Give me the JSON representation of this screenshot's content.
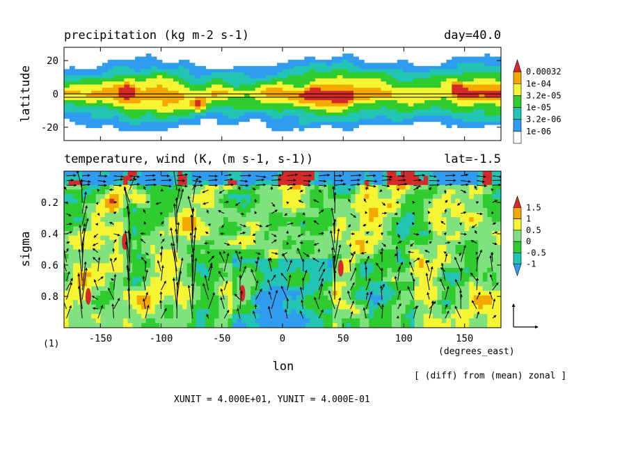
{
  "chart_data": [
    {
      "type": "heatmap",
      "title": "precipitation (kg m-2 s-1)",
      "title_right": "day=40.0",
      "ylabel": "latitude",
      "xlim": [
        -180,
        180
      ],
      "ylim": [
        -28,
        28
      ],
      "yticks": [
        20,
        0,
        -20
      ],
      "reference_line_y": [
        0,
        -2
      ],
      "colorbar": {
        "levels": [
          "0.00032",
          "1e-04",
          "3.2e-05",
          "1e-05",
          "3.2e-06",
          "1e-06"
        ],
        "colors": [
          "#d62a2a",
          "#f5a800",
          "#f5f534",
          "#2fcc2f",
          "#22c4b4",
          "#2f9cf0",
          "#ffffff"
        ]
      },
      "band": {
        "narrow_lat_half_width": 8,
        "wide_lat_half_width": 20
      },
      "peaks": [
        {
          "lon": -128,
          "lat": 2,
          "level": "0.00032"
        },
        {
          "lon": -69,
          "lat": -7,
          "level": "0.00032"
        },
        {
          "lon": 25,
          "lat": 2,
          "level": "0.00032"
        },
        {
          "lon": 48,
          "lat": -2,
          "level": "0.00032"
        },
        {
          "lon": 145,
          "lat": 3,
          "level": "0.00032"
        }
      ]
    },
    {
      "type": "heatmap",
      "title": "temperature, wind (K, (m s-1, s-1))",
      "title_right": "lat=-1.5",
      "xlabel": "lon",
      "ylabel": "sigma",
      "xunits_label": "(degrees_east)",
      "xlim": [
        -180,
        180
      ],
      "ylim": [
        1.0,
        0.0
      ],
      "xticks": [
        -150,
        -100,
        -50,
        0,
        50,
        100,
        150
      ],
      "yticks": [
        0.2,
        0.4,
        0.6,
        0.8
      ],
      "colorbar": {
        "levels": [
          "1.5",
          "1",
          "0.5",
          "0",
          "-0.5",
          "-1"
        ],
        "colors": [
          "#d62a2a",
          "#f5a800",
          "#f5f534",
          "#7fe27f",
          "#2fcc2f",
          "#22c4b4",
          "#2f9cf0"
        ]
      },
      "vector_field": {
        "reference_arrow": true,
        "strong_updraft_lons": [
          -170,
          -130,
          -90,
          -75,
          45
        ]
      }
    }
  ],
  "figure_index": "(1)",
  "note_right": "[ (diff) from (mean) zonal ]",
  "units_line": "XUNIT = 4.000E+01, YUNIT = 4.000E-01"
}
